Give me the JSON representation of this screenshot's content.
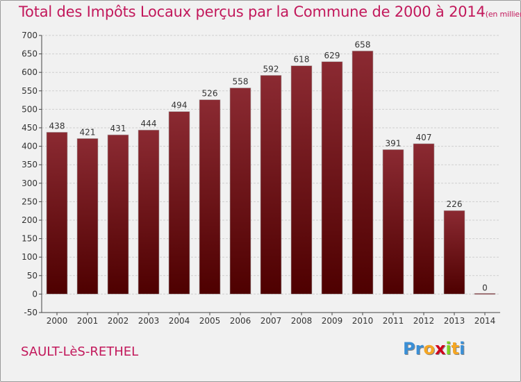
{
  "chart_data": {
    "type": "bar",
    "title": "Total des Impôts Locaux perçus par la Commune de 2000 à 2014",
    "subtitle": "(en milliers d'€)",
    "categories": [
      "2000",
      "2001",
      "2002",
      "2003",
      "2004",
      "2005",
      "2006",
      "2007",
      "2008",
      "2009",
      "2010",
      "2011",
      "2012",
      "2013",
      "2014"
    ],
    "values": [
      438,
      421,
      431,
      444,
      494,
      526,
      558,
      592,
      618,
      629,
      658,
      391,
      407,
      226,
      0
    ],
    "ylim": [
      -50,
      700
    ],
    "yticks": [
      -50,
      0,
      50,
      100,
      150,
      200,
      250,
      300,
      350,
      400,
      450,
      500,
      550,
      600,
      650,
      700
    ],
    "grid": true,
    "bar_color_top": "#8b2a32",
    "bar_color_bottom": "#4e0000"
  },
  "commune": "SAULT-LèS-RETHEL",
  "logo": {
    "letters": [
      "P",
      "r",
      "o",
      "x",
      "i",
      "t",
      "i"
    ],
    "colors": [
      "#3a8fd6",
      "#3a8fd6",
      "#f5a623",
      "#d0021b",
      "#7ed321",
      "#f5a623",
      "#3a8fd6"
    ]
  },
  "colors": {
    "accent": "#c2185b",
    "grid": "#cfcfcf",
    "axis": "#444444"
  }
}
